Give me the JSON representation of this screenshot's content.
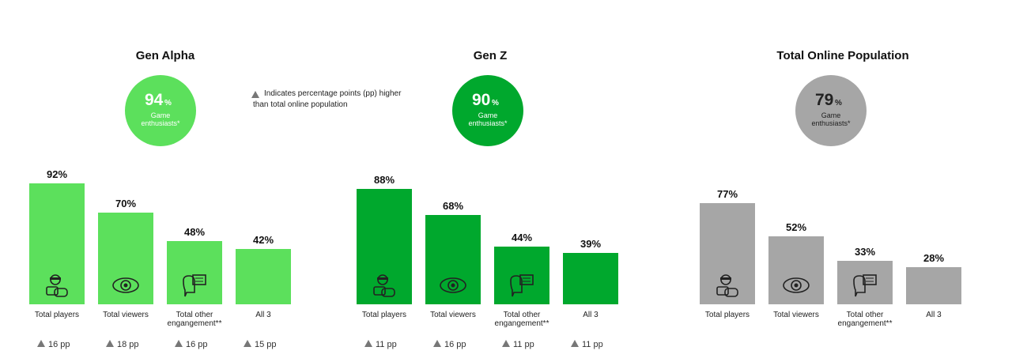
{
  "note": "Indicates percentage points (pp) higher than total online population",
  "chart_data": [
    {
      "type": "bar",
      "title": "Gen Alpha",
      "enthusiasts": {
        "value": 94,
        "unit": "%",
        "label": "Game enthusiasts*",
        "color": "#5ce05c"
      },
      "categories": [
        "Total players",
        "Total viewers",
        "Total other engangement**",
        "All 3"
      ],
      "values": [
        92,
        70,
        48,
        42
      ],
      "value_labels": [
        "92%",
        "70%",
        "48%",
        "42%"
      ],
      "color": "#5ce05c",
      "differences": {
        "values": [
          16,
          18,
          16,
          15
        ],
        "value_labels": [
          "16 pp",
          "18 pp",
          "16 pp",
          "15 pp"
        ]
      }
    },
    {
      "type": "bar",
      "title": "Gen Z",
      "enthusiasts": {
        "value": 90,
        "unit": "%",
        "label": "Game enthusiasts*",
        "color": "#00a82d"
      },
      "categories": [
        "Total players",
        "Total viewers",
        "Total other engangement**",
        "All 3"
      ],
      "values": [
        88,
        68,
        44,
        39
      ],
      "value_labels": [
        "88%",
        "68%",
        "44%",
        "39%"
      ],
      "color": "#00a82d",
      "differences": {
        "values": [
          11,
          16,
          11,
          11
        ],
        "value_labels": [
          "11 pp",
          "16 pp",
          "11 pp",
          "11 pp"
        ]
      }
    },
    {
      "type": "bar",
      "title": "Total Online Population",
      "enthusiasts": {
        "value": 79,
        "unit": "%",
        "label": "Game enthusiasts*",
        "color": "#a6a6a6"
      },
      "categories": [
        "Total players",
        "Total viewers",
        "Total other engangement**",
        "All 3"
      ],
      "values": [
        77,
        52,
        33,
        28
      ],
      "value_labels": [
        "77%",
        "52%",
        "33%",
        "28%"
      ],
      "color": "#a6a6a6"
    }
  ]
}
